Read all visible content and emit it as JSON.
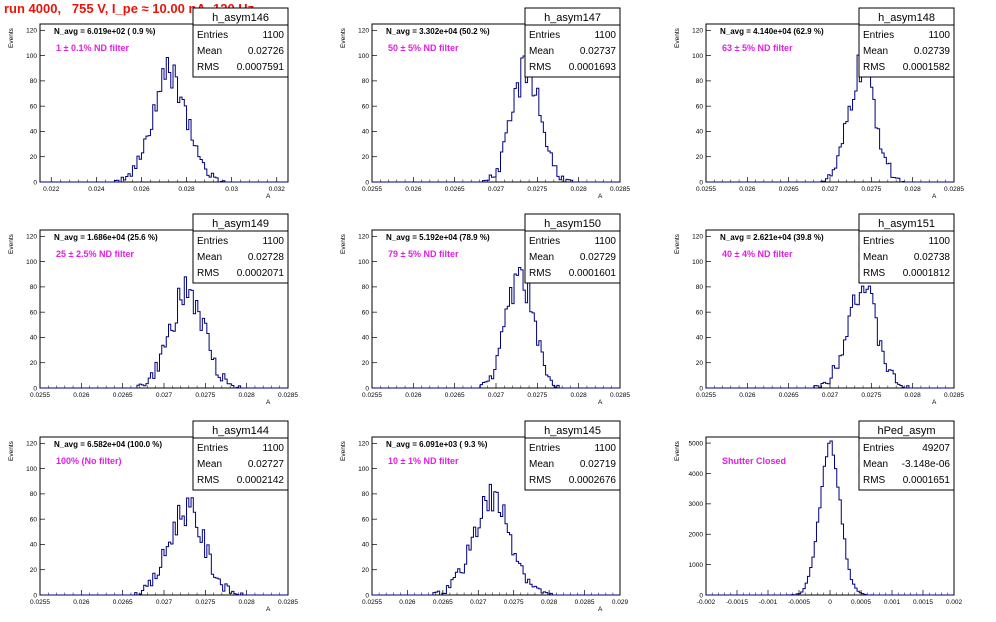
{
  "page": {
    "title": "run 4000,   755 V, I_pe ≈ 10.00 nA, 120 Hz"
  },
  "chart_data": [
    {
      "type": "histogram",
      "name": "h_asym146",
      "n_avg_text": "N_avg = 6.019e+02 ( 0.9 %)",
      "filter_text": "1 ± 0.1% ND filter",
      "stats": [
        {
          "label": "Entries",
          "value": "1100"
        },
        {
          "label": "Mean",
          "value": "0.02726"
        },
        {
          "label": "RMS",
          "value": "0.0007591"
        }
      ],
      "xlim": [
        0.0215,
        0.0325
      ],
      "xticks": [
        "0.022",
        "0.024",
        "0.026",
        "0.028",
        "0.03",
        "0.032"
      ],
      "ylim": [
        0,
        125
      ],
      "yticks": [
        "0",
        "20",
        "40",
        "60",
        "80",
        "100",
        "120"
      ],
      "ylabel": "Events",
      "xlabel": "A",
      "mean": 0.02726,
      "rms": 0.0007591,
      "peak": 85,
      "seed": 146
    },
    {
      "type": "histogram",
      "name": "h_asym147",
      "n_avg_text": "N_avg = 3.302e+04 (50.2 %)",
      "filter_text": "50 ± 5% ND filter",
      "stats": [
        {
          "label": "Entries",
          "value": "1100"
        },
        {
          "label": "Mean",
          "value": "0.02737"
        },
        {
          "label": "RMS",
          "value": "0.0001693"
        }
      ],
      "xlim": [
        0.0255,
        0.0285
      ],
      "xticks": [
        "0.0255",
        "0.026",
        "0.0265",
        "0.027",
        "0.0275",
        "0.028",
        "0.0285"
      ],
      "ylim": [
        0,
        125
      ],
      "yticks": [
        "0",
        "20",
        "40",
        "60",
        "80",
        "100",
        "120"
      ],
      "ylabel": "Events",
      "xlabel": "A",
      "mean": 0.02737,
      "rms": 0.0001693,
      "peak": 90,
      "seed": 147
    },
    {
      "type": "histogram",
      "name": "h_asym148",
      "n_avg_text": "N_avg = 4.140e+04 (62.9 %)",
      "filter_text": "63 ± 5% ND filter",
      "stats": [
        {
          "label": "Entries",
          "value": "1100"
        },
        {
          "label": "Mean",
          "value": "0.02739"
        },
        {
          "label": "RMS",
          "value": "0.0001582"
        }
      ],
      "xlim": [
        0.0255,
        0.0285
      ],
      "xticks": [
        "0.0255",
        "0.026",
        "0.0265",
        "0.027",
        "0.0275",
        "0.028",
        "0.0285"
      ],
      "ylim": [
        0,
        125
      ],
      "yticks": [
        "0",
        "20",
        "40",
        "60",
        "80",
        "100",
        "120"
      ],
      "ylabel": "Events",
      "xlabel": "A",
      "mean": 0.02739,
      "rms": 0.0001582,
      "peak": 92,
      "seed": 148
    },
    {
      "type": "histogram",
      "name": "h_asym149",
      "n_avg_text": "N_avg = 1.686e+04 (25.6 %)",
      "filter_text": "25 ± 2.5% ND filter",
      "stats": [
        {
          "label": "Entries",
          "value": "1100"
        },
        {
          "label": "Mean",
          "value": "0.02728"
        },
        {
          "label": "RMS",
          "value": "0.0002071"
        }
      ],
      "xlim": [
        0.0255,
        0.0285
      ],
      "xticks": [
        "0.0255",
        "0.026",
        "0.0265",
        "0.027",
        "0.0275",
        "0.028",
        "0.0285"
      ],
      "ylim": [
        0,
        125
      ],
      "yticks": [
        "0",
        "20",
        "40",
        "60",
        "80",
        "100",
        "120"
      ],
      "ylabel": "Events",
      "xlabel": "A",
      "mean": 0.02728,
      "rms": 0.0002071,
      "peak": 75,
      "seed": 149
    },
    {
      "type": "histogram",
      "name": "h_asym150",
      "n_avg_text": "N_avg = 5.192e+04 (78.9 %)",
      "filter_text": "79 ± 5% ND filter",
      "stats": [
        {
          "label": "Entries",
          "value": "1100"
        },
        {
          "label": "Mean",
          "value": "0.02729"
        },
        {
          "label": "RMS",
          "value": "0.0001601"
        }
      ],
      "xlim": [
        0.0255,
        0.0285
      ],
      "xticks": [
        "0.0255",
        "0.026",
        "0.0265",
        "0.027",
        "0.0275",
        "0.028",
        "0.0285"
      ],
      "ylim": [
        0,
        125
      ],
      "yticks": [
        "0",
        "20",
        "40",
        "60",
        "80",
        "100",
        "120"
      ],
      "ylabel": "Events",
      "xlabel": "A",
      "mean": 0.02729,
      "rms": 0.0001601,
      "peak": 92,
      "seed": 150
    },
    {
      "type": "histogram",
      "name": "h_asym151",
      "n_avg_text": "N_avg = 2.621e+04 (39.8 %)",
      "filter_text": "40 ± 4% ND filter",
      "stats": [
        {
          "label": "Entries",
          "value": "1100"
        },
        {
          "label": "Mean",
          "value": "0.02738"
        },
        {
          "label": "RMS",
          "value": "0.0001812"
        }
      ],
      "xlim": [
        0.0255,
        0.0285
      ],
      "xticks": [
        "0.0255",
        "0.026",
        "0.0265",
        "0.027",
        "0.0275",
        "0.028",
        "0.0285"
      ],
      "ylim": [
        0,
        125
      ],
      "yticks": [
        "0",
        "20",
        "40",
        "60",
        "80",
        "100",
        "120"
      ],
      "ylabel": "Events",
      "xlabel": "A",
      "mean": 0.02738,
      "rms": 0.0001812,
      "peak": 80,
      "seed": 151
    },
    {
      "type": "histogram",
      "name": "h_asym144",
      "n_avg_text": "N_avg = 6.582e+04 (100.0 %)",
      "filter_text": "100% (No filter)",
      "stats": [
        {
          "label": "Entries",
          "value": "1100"
        },
        {
          "label": "Mean",
          "value": "0.02727"
        },
        {
          "label": "RMS",
          "value": "0.0002142"
        }
      ],
      "xlim": [
        0.0255,
        0.0285
      ],
      "xticks": [
        "0.0255",
        "0.026",
        "0.0265",
        "0.027",
        "0.0275",
        "0.028",
        "0.0285"
      ],
      "ylim": [
        0,
        125
      ],
      "yticks": [
        "0",
        "20",
        "40",
        "60",
        "80",
        "100",
        "120"
      ],
      "ylabel": "Events",
      "xlabel": "A",
      "mean": 0.02727,
      "rms": 0.0002142,
      "peak": 68,
      "seed": 144
    },
    {
      "type": "histogram",
      "name": "h_asym145",
      "n_avg_text": "N_avg = 6.091e+03 ( 9.3 %)",
      "filter_text": "10 ± 1% ND filter",
      "stats": [
        {
          "label": "Entries",
          "value": "1100"
        },
        {
          "label": "Mean",
          "value": "0.02719"
        },
        {
          "label": "RMS",
          "value": "0.0002676"
        }
      ],
      "xlim": [
        0.0255,
        0.029
      ],
      "xticks": [
        "0.0255",
        "0.026",
        "0.0265",
        "0.027",
        "0.0275",
        "0.028",
        "0.0285",
        "0.029"
      ],
      "ylim": [
        0,
        125
      ],
      "yticks": [
        "0",
        "20",
        "40",
        "60",
        "80",
        "100",
        "120"
      ],
      "ylabel": "Events",
      "xlabel": "A",
      "mean": 0.02719,
      "rms": 0.0002676,
      "peak": 74,
      "seed": 145
    },
    {
      "type": "histogram",
      "name": "hPed_asym",
      "n_avg_text": "",
      "filter_text": "Shutter Closed",
      "stats": [
        {
          "label": "Entries",
          "value": "49207"
        },
        {
          "label": "Mean",
          "value": "-3.148e-06"
        },
        {
          "label": "RMS",
          "value": "0.0001651"
        }
      ],
      "xlim": [
        -0.002,
        0.002
      ],
      "xticks": [
        "-0.002",
        "-0.0015",
        "-0.001",
        "-0.0005",
        "0",
        "0.0005",
        "0.001",
        "0.0015",
        "0.002"
      ],
      "ylim": [
        0,
        5200
      ],
      "yticks": [
        "0",
        "1000",
        "2000",
        "3000",
        "4000",
        "5000"
      ],
      "ylabel": "Events",
      "xlabel": "",
      "mean": 0.0,
      "rms": 0.0001651,
      "peak": 4950,
      "seed": 200
    }
  ],
  "colors": {
    "title": "#e8140a",
    "histogram_line": "#000080",
    "filter_label": "#e020e0"
  }
}
